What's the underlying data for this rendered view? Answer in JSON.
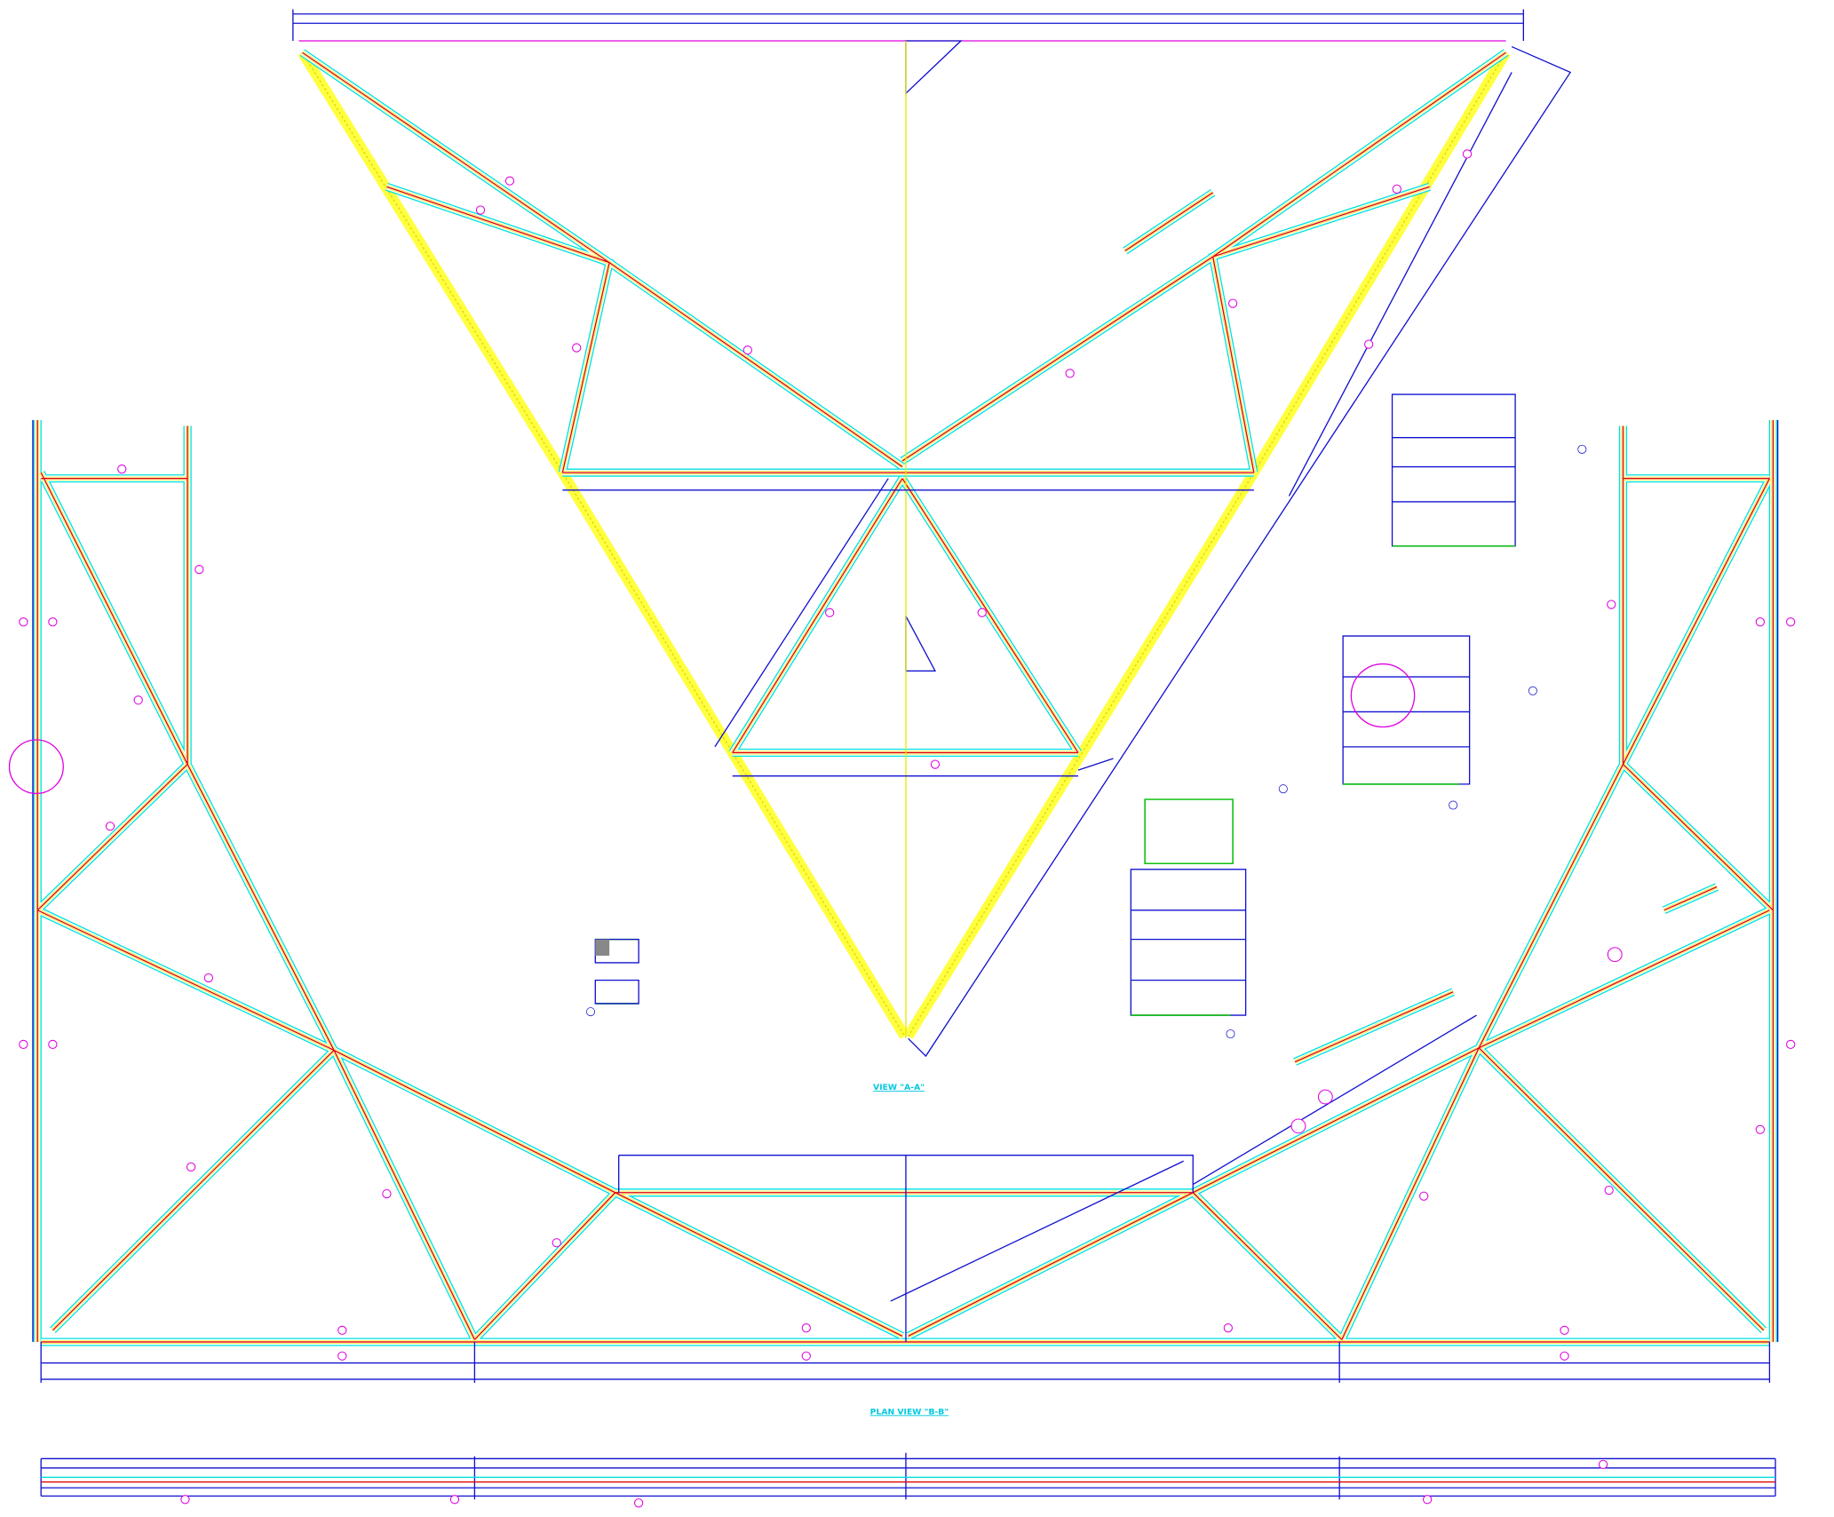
{
  "labels": {
    "view_a": "VIEW \"A-A\"",
    "view_b": "PLAN VIEW \"B-B\""
  }
}
